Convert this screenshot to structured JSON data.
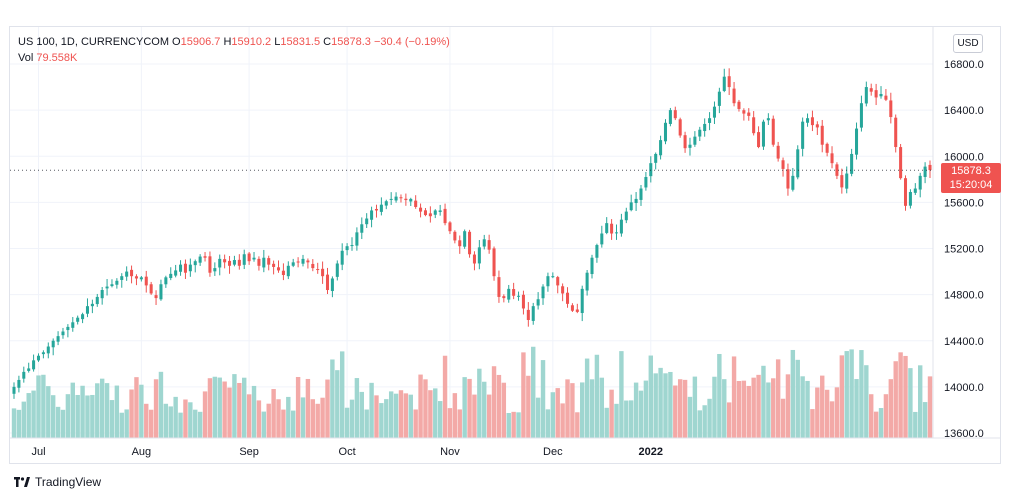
{
  "legend": {
    "symbol": "US 100, 1D, CURRENCYCOM",
    "open_label": "O",
    "open": "15906.7",
    "high_label": "H",
    "high": "15910.2",
    "low_label": "L",
    "low": "15831.5",
    "close_label": "C",
    "close": "15878.3",
    "change": "−30.4 (−0.19%)",
    "vol_label": "Vol",
    "vol": "79.558K"
  },
  "currency": "USD",
  "last_price": {
    "price": "15878.3",
    "countdown": "15:20:04"
  },
  "brand": "TradingView",
  "colors": {
    "up": "#26a69a",
    "down": "#ef5350",
    "up_vol": "#9fd6d0",
    "down_vol": "#f3a9a7"
  },
  "chart_data": {
    "type": "candlestick",
    "symbol": "US 100",
    "interval": "1D",
    "y_ticks": [
      "16800.0",
      "16400.0",
      "16000.0",
      "15600.0",
      "15200.0",
      "14800.0",
      "14400.0",
      "14000.0",
      "13600.0"
    ],
    "ylim": [
      13600,
      16800
    ],
    "x_ticks": [
      {
        "label": "Jul",
        "index": 5
      },
      {
        "label": "Aug",
        "index": 26
      },
      {
        "label": "Sep",
        "index": 48
      },
      {
        "label": "Oct",
        "index": 68
      },
      {
        "label": "Nov",
        "index": 89
      },
      {
        "label": "Dec",
        "index": 110
      },
      {
        "label": "2022",
        "index": 130,
        "bold": true
      }
    ],
    "last_price": 15878.3,
    "closes": [
      14000,
      14060,
      14130,
      14160,
      14230,
      14270,
      14300,
      14350,
      14400,
      14440,
      14480,
      14520,
      14560,
      14600,
      14630,
      14700,
      14720,
      14780,
      14840,
      14870,
      14890,
      14920,
      14960,
      15000,
      14960,
      14940,
      14950,
      14880,
      14810,
      14770,
      14890,
      14950,
      14980,
      15010,
      15060,
      14990,
      15060,
      15090,
      15130,
      15120,
      14990,
      15030,
      15110,
      15080,
      15050,
      15100,
      15050,
      15150,
      15090,
      15120,
      15050,
      15120,
      15060,
      15040,
      15010,
      14970,
      15050,
      15080,
      15080,
      15110,
      15080,
      15030,
      15020,
      14960,
      14840,
      14940,
      15070,
      15180,
      15220,
      15230,
      15340,
      15410,
      15460,
      15530,
      15530,
      15580,
      15610,
      15630,
      15650,
      15640,
      15620,
      15630,
      15560,
      15520,
      15490,
      15480,
      15530,
      15530,
      15420,
      15350,
      15270,
      15220,
      15350,
      15150,
      15070,
      15210,
      15280,
      15190,
      14960,
      14780,
      14770,
      14850,
      14790,
      14790,
      14680,
      14580,
      14700,
      14760,
      14870,
      14960,
      14960,
      14880,
      14810,
      14720,
      14660,
      14650,
      14850,
      14990,
      15120,
      15230,
      15330,
      15420,
      15330,
      15340,
      15450,
      15520,
      15600,
      15630,
      15720,
      15820,
      15940,
      16020,
      16140,
      16290,
      16400,
      16330,
      16180,
      16070,
      16100,
      16170,
      16230,
      16280,
      16330,
      16430,
      16560,
      16690,
      16600,
      16460,
      16410,
      16370,
      16350,
      16200,
      16080,
      16300,
      16330,
      16100,
      15980,
      15890,
      15720,
      15830,
      16060,
      16300,
      16330,
      16270,
      16250,
      16100,
      16030,
      15940,
      15830,
      15730,
      15850,
      16020,
      16240,
      16460,
      16600,
      16560,
      16510,
      16540,
      16490,
      16340,
      16080,
      15810,
      15570,
      15690,
      15720,
      15830,
      15910,
      15880
    ]
  }
}
